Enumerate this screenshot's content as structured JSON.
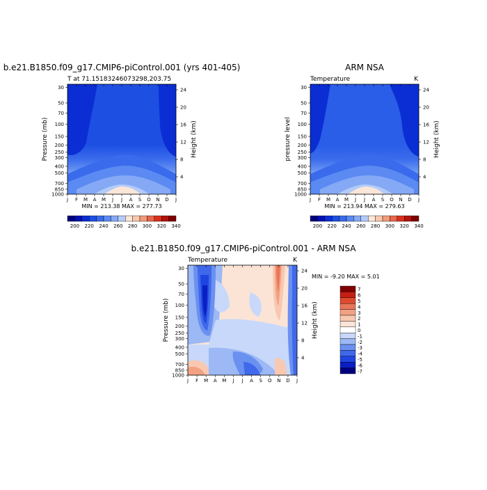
{
  "colors": {
    "temp_scale": [
      "#00007f",
      "#0011b3",
      "#0a2ed4",
      "#1d4fe3",
      "#3a6bec",
      "#5b8af2",
      "#86a9f5",
      "#b3cbf8",
      "#fbe7d9",
      "#f8c8ad",
      "#f29b7b",
      "#e8664c",
      "#d9301e",
      "#b3120b",
      "#7f0000"
    ],
    "diff_scale": [
      "#00007f",
      "#0a1fc2",
      "#1f45e0",
      "#3f68eb",
      "#6a90f0",
      "#9cb8f5",
      "#c8d8fa",
      "#ffffff",
      "#fbe4d6",
      "#f8c8b0",
      "#f2a283",
      "#ea7659",
      "#dd4a30",
      "#c41f12",
      "#7f0000"
    ]
  },
  "panels": [
    {
      "title": "b.e21.B1850.f09_g17.CMIP6-piControl.001 (yrs 401-405)",
      "subtitle_left": "T at 71.15183246073298,203.75",
      "subtitle_right": "",
      "ylabel": "Pressure (mb)",
      "ylabel_right": "Height (km)",
      "stats": "MIN = 213.38  MAX = 277.73"
    },
    {
      "title": "ARM NSA",
      "subtitle_left": "Temperature",
      "subtitle_right": "K",
      "ylabel": "pressure level",
      "ylabel_right": "Height (km)",
      "stats": "MIN = 213.94  MAX = 279.63"
    },
    {
      "title": "b.e21.B1850.f09_g17.CMIP6-piControl.001 - ARM NSA",
      "subtitle_left": "Temperature",
      "subtitle_right": "K",
      "ylabel": "Pressure (mb)",
      "ylabel_right": "Height (km)",
      "stats": "MIN =  -9.20  MAX =   5.01"
    }
  ],
  "chart_data": [
    {
      "type": "heatmap",
      "title": "b.e21.B1850.f09_g17.CMIP6-piControl.001 (yrs 401-405)",
      "x": [
        "J",
        "F",
        "M",
        "A",
        "M",
        "J",
        "J",
        "A",
        "S",
        "O",
        "N",
        "D",
        "J"
      ],
      "y_pressure_ticks": [
        30,
        50,
        70,
        100,
        150,
        200,
        250,
        300,
        400,
        500,
        700,
        850,
        1000
      ],
      "y_height_ticks": [
        4,
        8,
        12,
        16,
        20,
        24
      ],
      "ylabel": "Pressure (mb)",
      "ylabel_right": "Height (km)",
      "colorbar_labels": [
        200,
        220,
        240,
        260,
        280,
        300,
        320,
        340
      ],
      "min": 213.38,
      "max": 277.73
    },
    {
      "type": "heatmap",
      "title": "ARM NSA",
      "x": [
        "J",
        "F",
        "M",
        "A",
        "M",
        "J",
        "J",
        "A",
        "S",
        "O",
        "N",
        "D",
        "J"
      ],
      "y_pressure_ticks": [
        30,
        50,
        70,
        100,
        150,
        200,
        250,
        300,
        400,
        500,
        700,
        850,
        1000
      ],
      "y_height_ticks": [
        4,
        8,
        12,
        16,
        20,
        24
      ],
      "ylabel": "pressure level",
      "ylabel_right": "Height (km)",
      "colorbar_labels": [
        200,
        220,
        240,
        260,
        280,
        300,
        320,
        340
      ],
      "min": 213.94,
      "max": 279.63
    },
    {
      "type": "heatmap",
      "title": "b.e21.B1850.f09_g17.CMIP6-piControl.001 - ARM NSA",
      "x": [
        "J",
        "F",
        "M",
        "A",
        "M",
        "J",
        "J",
        "A",
        "S",
        "O",
        "N",
        "D",
        "J"
      ],
      "y_pressure_ticks": [
        30,
        50,
        70,
        100,
        150,
        200,
        250,
        300,
        400,
        500,
        700,
        850,
        1000
      ],
      "y_height_ticks": [
        4,
        8,
        12,
        16,
        20,
        24
      ],
      "ylabel": "Pressure (mb)",
      "ylabel_right": "Height (km)",
      "colorbar_labels": [
        7,
        6,
        5,
        4,
        3,
        2,
        1,
        0,
        -1,
        -2,
        -3,
        -4,
        -5,
        -6,
        -7
      ],
      "min": -9.2,
      "max": 5.01
    }
  ]
}
